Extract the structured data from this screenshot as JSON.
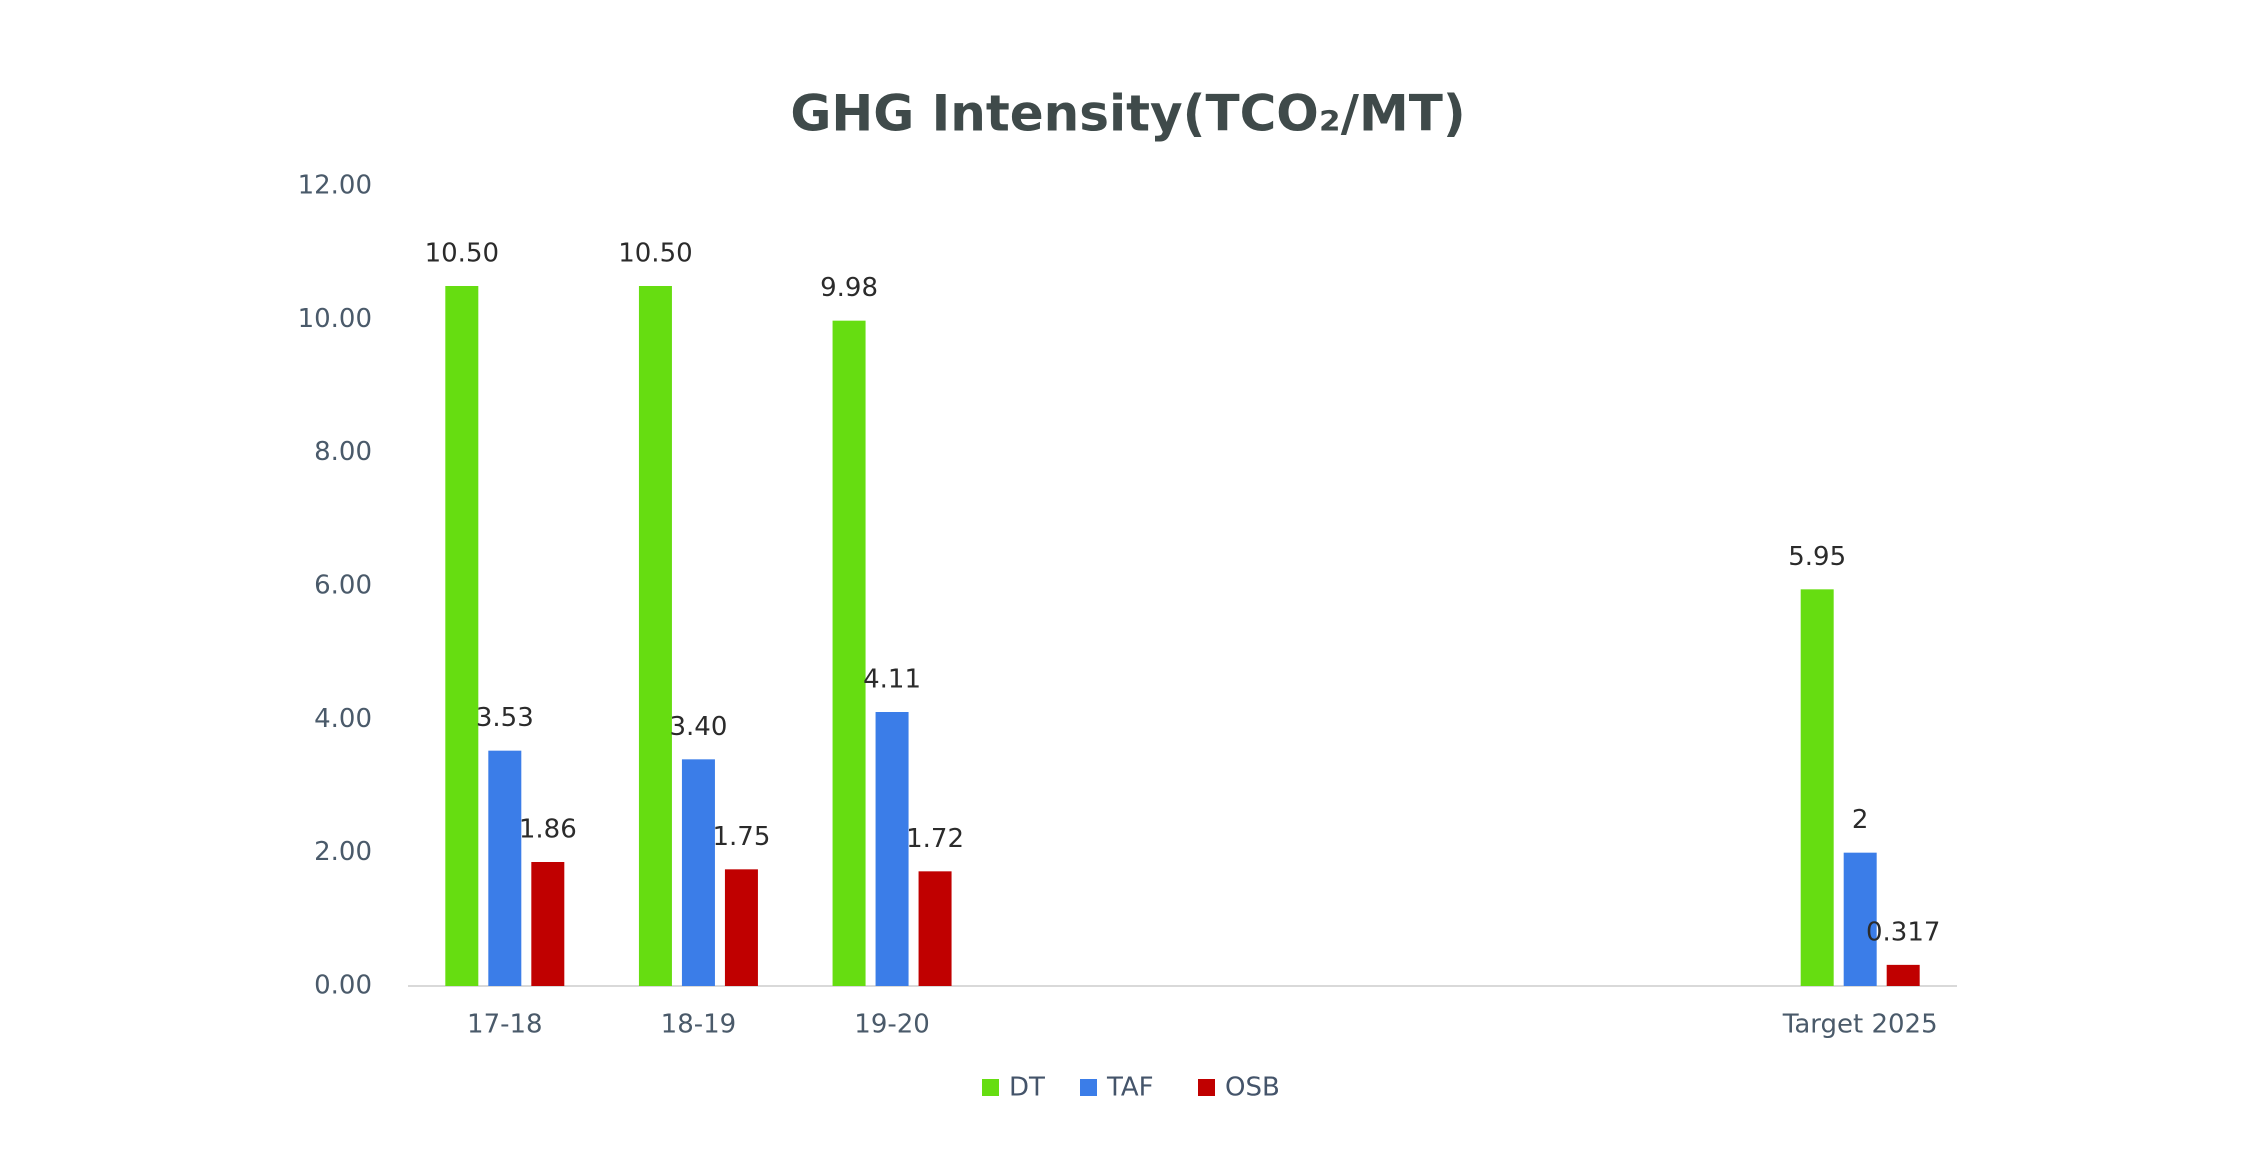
{
  "chart_data": {
    "type": "bar",
    "title": "GHG Intensity(TCO₂/MT)",
    "categories": [
      "17-18",
      "18-19",
      "19-20",
      null,
      null,
      null,
      null,
      "Target 2025"
    ],
    "series": [
      {
        "name": "DT",
        "color": "#66dd11",
        "values": [
          10.5,
          10.5,
          9.98,
          null,
          null,
          null,
          null,
          5.95
        ],
        "value_labels": [
          "10.50",
          "10.50",
          "9.98",
          null,
          null,
          null,
          null,
          "5.95"
        ]
      },
      {
        "name": "TAF",
        "color": "#3b7de8",
        "values": [
          3.53,
          3.4,
          4.11,
          null,
          null,
          null,
          null,
          2
        ],
        "value_labels": [
          "3.53",
          "3.40",
          "4.11",
          null,
          null,
          null,
          null,
          "2"
        ]
      },
      {
        "name": "OSB",
        "color": "#c00000",
        "values": [
          1.86,
          1.75,
          1.72,
          null,
          null,
          null,
          null,
          0.317
        ]
      }
    ],
    "ylim": [
      0,
      12
    ],
    "yticks": [
      {
        "value": 0,
        "label": "0.00"
      },
      {
        "value": 2,
        "label": "2.00"
      },
      {
        "value": 4,
        "label": "4.00"
      },
      {
        "value": 6,
        "label": "6.00"
      },
      {
        "value": 8,
        "label": "8.00"
      },
      {
        "value": 10,
        "label": "10.00"
      },
      {
        "value": 12,
        "label": "12.00"
      }
    ],
    "grid": false,
    "legend": "bottom"
  }
}
